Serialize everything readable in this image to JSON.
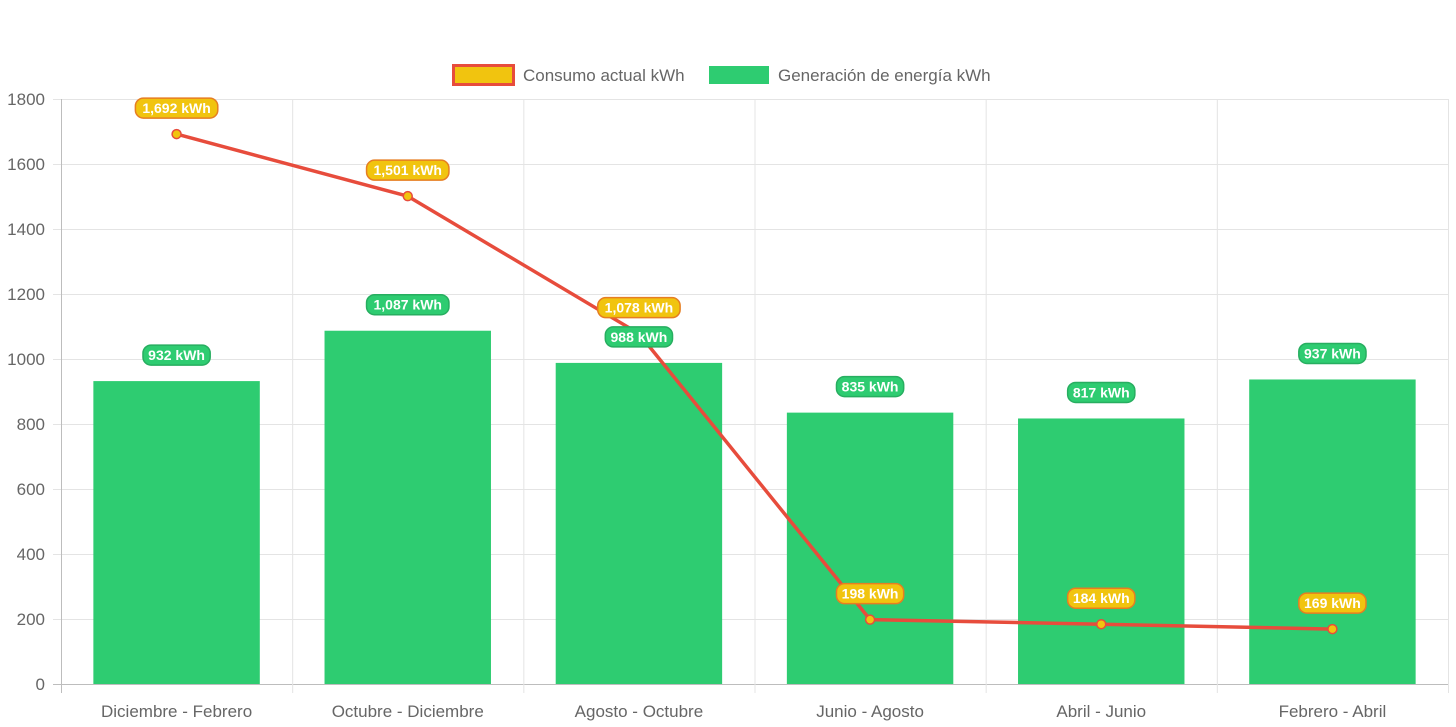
{
  "chart_data": {
    "type": "bar",
    "categories": [
      "Diciembre - Febrero",
      "Octubre - Diciembre",
      "Agosto - Octubre",
      "Junio - Agosto",
      "Abril - Junio",
      "Febrero - Abril"
    ],
    "series": [
      {
        "name": "Consumo actual kWh",
        "type": "line",
        "values": [
          1692,
          1501,
          1078,
          198,
          184,
          169
        ],
        "labels": [
          "1,692 kWh",
          "1,501 kWh",
          "1,078 kWh",
          "198 kWh",
          "184 kWh",
          "169 kWh"
        ],
        "line_color": "#e74c3c",
        "fill_color": "#f1c40f"
      },
      {
        "name": "Generación de energía kWh",
        "type": "bar",
        "values": [
          932,
          1087,
          988,
          835,
          817,
          937
        ],
        "labels": [
          "932 kWh",
          "1,087 kWh",
          "988 kWh",
          "835 kWh",
          "817 kWh",
          "937 kWh"
        ],
        "color": "#2ecc71"
      }
    ],
    "ylim": [
      0,
      1800
    ],
    "yticks": [
      0,
      200,
      400,
      600,
      800,
      1000,
      1200,
      1400,
      1600,
      1800
    ],
    "grid": true,
    "legend_position": "top"
  }
}
